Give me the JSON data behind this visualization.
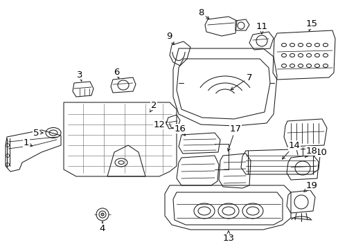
{
  "background_color": "#ffffff",
  "line_color": "#1a1a1a",
  "fig_width": 4.89,
  "fig_height": 3.6,
  "dpi": 100,
  "fontsize": 9.5,
  "lw": 0.75
}
